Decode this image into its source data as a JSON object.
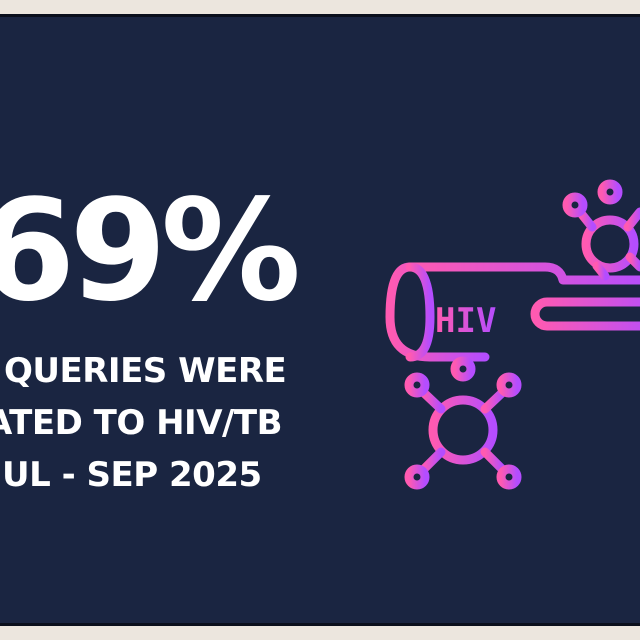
{
  "stat": {
    "percent": "69%",
    "line1": "QUERIES WERE",
    "line2": "ATED TO HIV/TB",
    "line3": "UL - SEP 2025"
  },
  "icon": {
    "name": "hiv-test-tube-icon",
    "label": "HIV",
    "gradient_start": "#ff5ab1",
    "gradient_end": "#b44dff"
  },
  "colors": {
    "background": "#1a2541",
    "text": "#ffffff",
    "outer": "#ece6de"
  }
}
